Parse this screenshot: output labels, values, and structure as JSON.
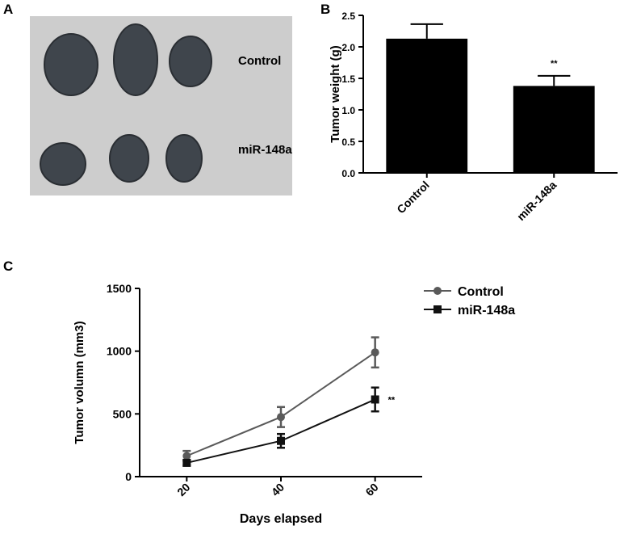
{
  "figure": {
    "panel_a": {
      "panel": "A",
      "rows": [
        "Control",
        "miR-148a"
      ]
    }
  },
  "chart_data": [
    {
      "type": "bar",
      "panel": "B",
      "y_label": "Tumor weight (g)",
      "categories": [
        "Control",
        "miR-148a"
      ],
      "values": [
        2.13,
        1.38
      ],
      "errors": [
        0.23,
        0.16
      ],
      "color": "#000000",
      "ylim": [
        0,
        2.5
      ],
      "yticks": [
        {
          "value": 0,
          "label": "0.0"
        },
        0.5,
        {
          "value": 1,
          "label": "1.0"
        },
        1.5,
        {
          "value": 2,
          "label": "2.0"
        },
        2.5
      ],
      "annotations": [
        {
          "text": "**",
          "x": "miR-148a"
        }
      ]
    },
    {
      "type": "line",
      "panel": "C",
      "x_label": "Days elapsed",
      "y_label": "Tumor volumn (mm3)",
      "x": [
        20,
        40,
        60
      ],
      "series": [
        {
          "name": "Control",
          "color": "#5a5a5a",
          "marker": "circle",
          "values": [
            165,
            475,
            990
          ],
          "errors": [
            40,
            80,
            120
          ]
        },
        {
          "name": "miR-148a",
          "color": "#111111",
          "marker": "square",
          "values": [
            110,
            285,
            615
          ],
          "errors": [
            22,
            55,
            95
          ]
        }
      ],
      "xlim": [
        10,
        70
      ],
      "xticks": [
        20,
        40,
        60
      ],
      "ylim": [
        0,
        1500
      ],
      "yticks": [
        0,
        500,
        1000,
        1500
      ],
      "legend": "top-right",
      "annotations": [
        {
          "text": "**",
          "x": 60,
          "series": "miR-148a"
        }
      ]
    }
  ]
}
